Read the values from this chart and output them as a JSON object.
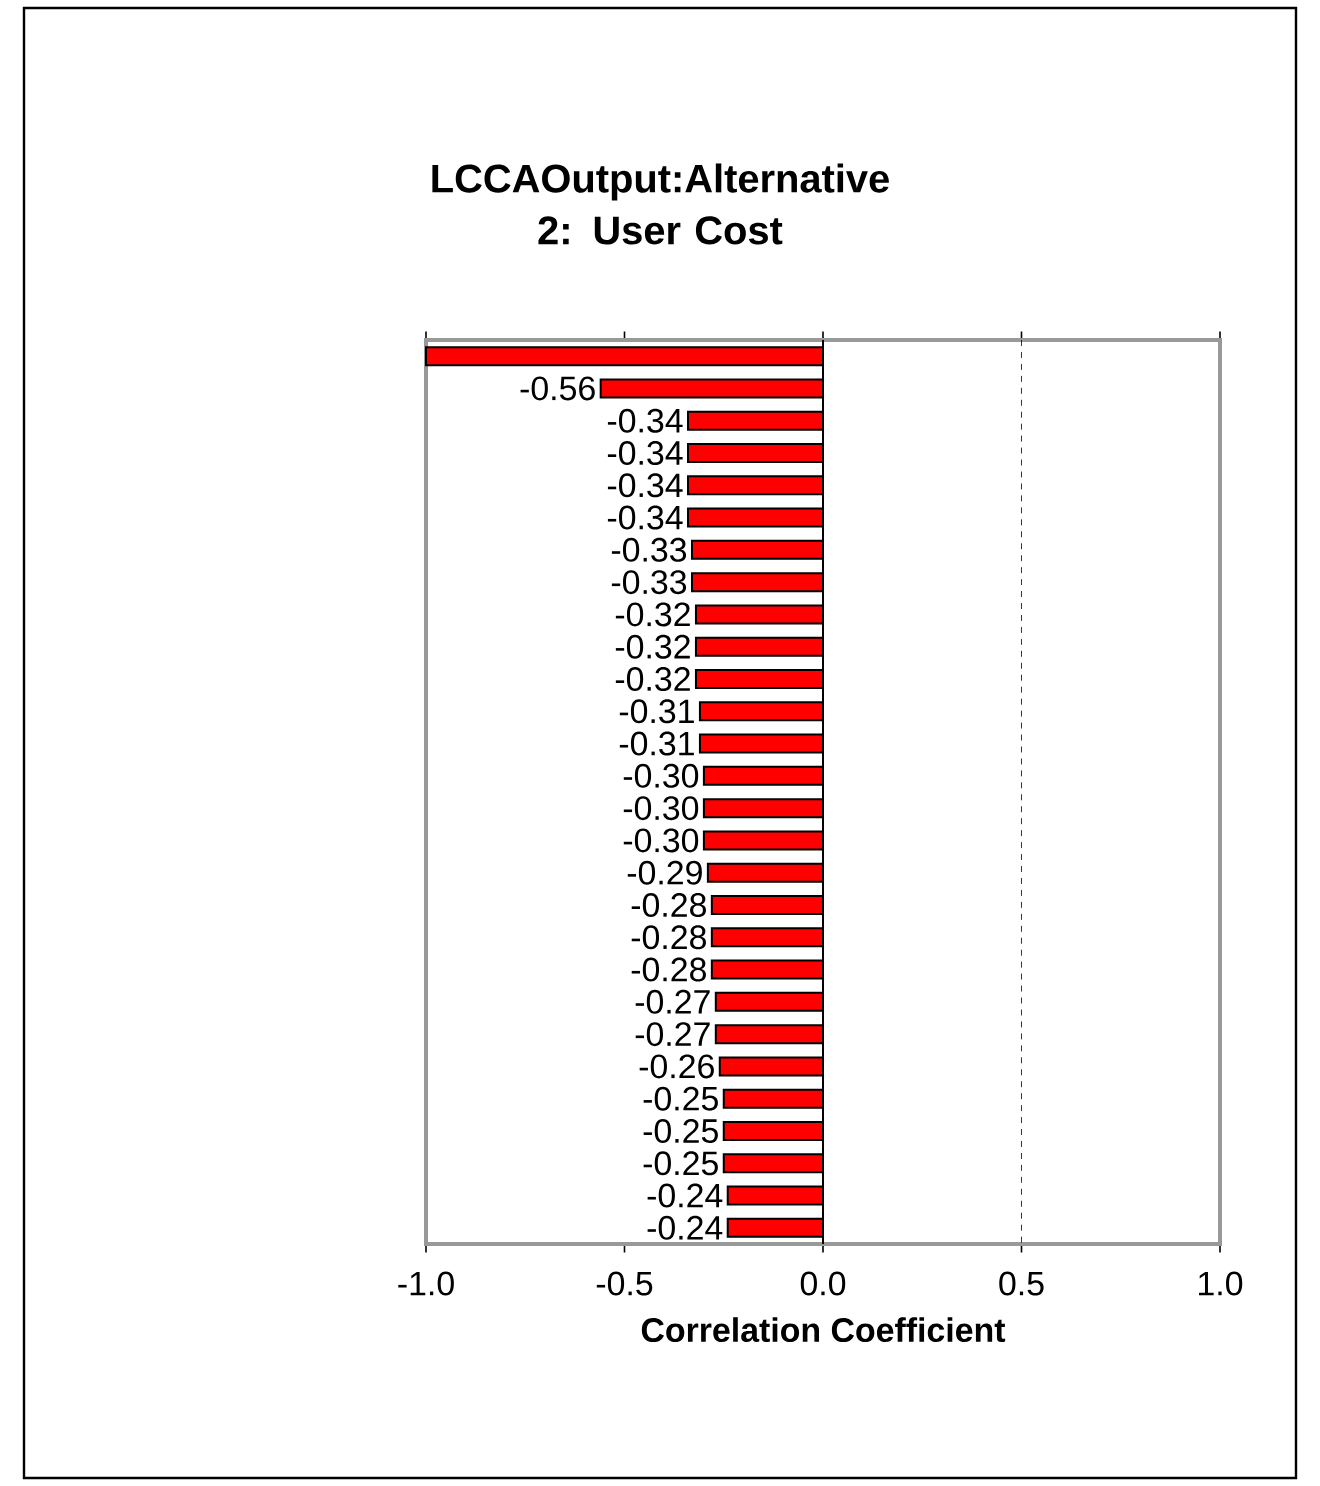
{
  "chart_data": {
    "type": "bar",
    "orientation": "horizontal",
    "title": "LCCAOutput:Alternative 2: User Cost",
    "xlabel": "Correlation Coefficient",
    "categories": [
      null,
      null,
      null,
      null,
      null,
      null,
      null,
      null,
      null,
      null,
      null,
      null,
      null,
      null,
      null,
      null,
      null,
      null,
      null,
      null,
      null,
      null,
      null,
      null,
      null,
      null,
      null,
      null
    ],
    "values": [
      -1.0,
      -0.56,
      -0.34,
      -0.34,
      -0.34,
      -0.34,
      -0.33,
      -0.33,
      -0.32,
      -0.32,
      -0.32,
      -0.31,
      -0.31,
      -0.3,
      -0.3,
      -0.3,
      -0.29,
      -0.28,
      -0.28,
      -0.28,
      -0.27,
      -0.27,
      -0.26,
      -0.25,
      -0.25,
      -0.25,
      -0.24,
      -0.24
    ],
    "value_labels": [
      null,
      "-0.56",
      "-0.34",
      "-0.34",
      "-0.34",
      "-0.34",
      "-0.33",
      "-0.33",
      "-0.32",
      "-0.32",
      "-0.32",
      "-0.31",
      "-0.31",
      "-0.30",
      "-0.30",
      "-0.30",
      "-0.29",
      "-0.28",
      "-0.28",
      "-0.28",
      "-0.27",
      "-0.27",
      "-0.26",
      "-0.25",
      "-0.25",
      "-0.25",
      "-0.24",
      "-0.24"
    ],
    "color": "#ff0000",
    "xlim": [
      -1.0,
      1.0
    ],
    "xticks": [
      {
        "value": -1.0,
        "label": "-1.0"
      },
      {
        "value": -0.5,
        "label": "-0.5"
      },
      {
        "value": 0.0,
        "label": "0.0"
      },
      {
        "value": 0.5,
        "label": "0.5"
      },
      {
        "value": 1.0,
        "label": "1.0"
      }
    ],
    "ref_lines": [
      {
        "axis": "x",
        "value": 0.5,
        "line_style": "dashed"
      }
    ]
  }
}
